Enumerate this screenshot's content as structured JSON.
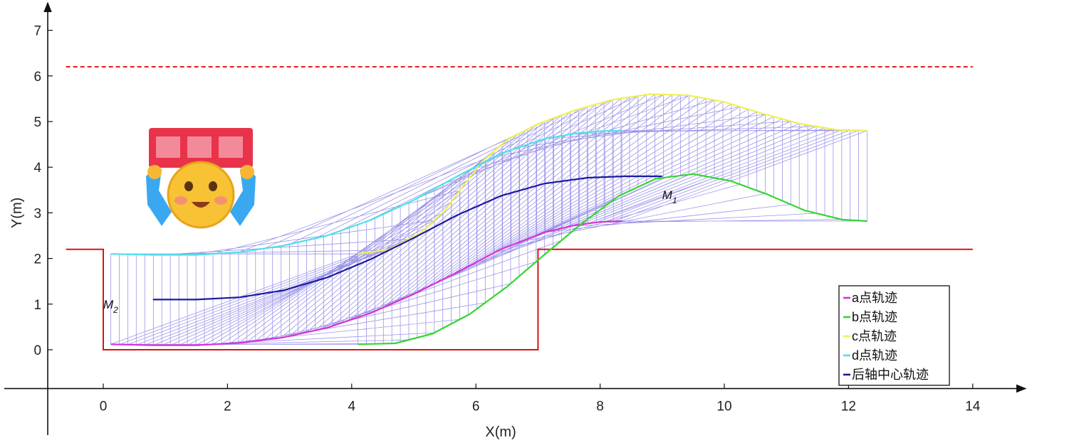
{
  "chart_data": {
    "type": "line",
    "xlabel": "X(m)",
    "ylabel": "Y(m)",
    "xlim": [
      -0.9,
      14.4
    ],
    "ylim": [
      -0.85,
      7.5
    ],
    "xticks": [
      0,
      2,
      4,
      6,
      8,
      10,
      12,
      14
    ],
    "yticks": [
      0,
      1,
      2,
      3,
      4,
      5,
      6,
      7
    ],
    "grid": false,
    "legend_position": "bottom-right",
    "colors": {
      "a": "#d633d6",
      "b": "#33d633",
      "c": "#f0f055",
      "d": "#4fe0e8",
      "center": "#1a1aa0",
      "mesh": "#7b72e0",
      "boundary": "#dd1111",
      "limit_line": "#dd1111"
    },
    "boundary_line": {
      "x": [
        0,
        0,
        7,
        7,
        14
      ],
      "y": [
        2.2,
        0,
        0,
        2.2,
        2.2
      ],
      "prefix": [
        -0.6,
        0
      ]
    },
    "limit_line": {
      "y": 6.2,
      "x": [
        -0.6,
        14
      ]
    },
    "series": [
      {
        "name": "a点轨迹",
        "key": "a",
        "x": [
          0.12,
          0.8,
          1.5,
          2.2,
          2.9,
          3.6,
          4.3,
          5.0,
          5.7,
          6.4,
          7.1,
          7.6,
          8.0,
          8.35
        ],
        "y": [
          0.12,
          0.1,
          0.1,
          0.15,
          0.27,
          0.48,
          0.8,
          1.22,
          1.7,
          2.2,
          2.57,
          2.73,
          2.8,
          2.82
        ]
      },
      {
        "name": "b点轨迹",
        "key": "b",
        "x": [
          4.1,
          4.7,
          5.3,
          5.9,
          6.5,
          7.1,
          7.7,
          8.3,
          8.9,
          9.5,
          10.1,
          10.7,
          11.3,
          11.9,
          12.3
        ],
        "y": [
          0.12,
          0.14,
          0.35,
          0.78,
          1.38,
          2.08,
          2.76,
          3.37,
          3.75,
          3.85,
          3.7,
          3.4,
          3.05,
          2.85,
          2.82
        ]
      },
      {
        "name": "c点轨迹",
        "key": "c",
        "x": [
          4.1,
          4.6,
          5.1,
          5.5,
          5.8,
          6.1,
          6.5,
          7.0,
          7.6,
          8.2,
          8.8,
          9.4,
          10.0,
          10.6,
          11.2,
          11.8,
          12.3
        ],
        "y": [
          2.1,
          2.2,
          2.55,
          3.05,
          3.6,
          4.12,
          4.6,
          4.95,
          5.25,
          5.48,
          5.6,
          5.58,
          5.43,
          5.18,
          4.96,
          4.82,
          4.8
        ]
      },
      {
        "name": "d点轨迹",
        "key": "d",
        "x": [
          0.12,
          0.8,
          1.5,
          2.2,
          2.9,
          3.6,
          4.3,
          5.0,
          5.7,
          6.4,
          7.1,
          7.6,
          8.0,
          8.35
        ],
        "y": [
          2.1,
          2.08,
          2.08,
          2.14,
          2.28,
          2.5,
          2.84,
          3.28,
          3.8,
          4.3,
          4.62,
          4.74,
          4.79,
          4.8
        ]
      },
      {
        "name": "后轴中心轨迹",
        "key": "center",
        "x": [
          0.8,
          1.5,
          2.2,
          2.9,
          3.6,
          4.3,
          5.0,
          5.7,
          6.4,
          7.1,
          7.8,
          8.4,
          9.0
        ],
        "y": [
          1.1,
          1.1,
          1.15,
          1.3,
          1.58,
          1.98,
          2.45,
          2.95,
          3.37,
          3.64,
          3.77,
          3.8,
          3.8
        ]
      }
    ],
    "annotations": [
      {
        "main": "M",
        "sub": "1",
        "x": 9.0,
        "y": 3.3
      },
      {
        "main": "M",
        "sub": "2",
        "x": 0.0,
        "y": 0.9
      }
    ]
  }
}
